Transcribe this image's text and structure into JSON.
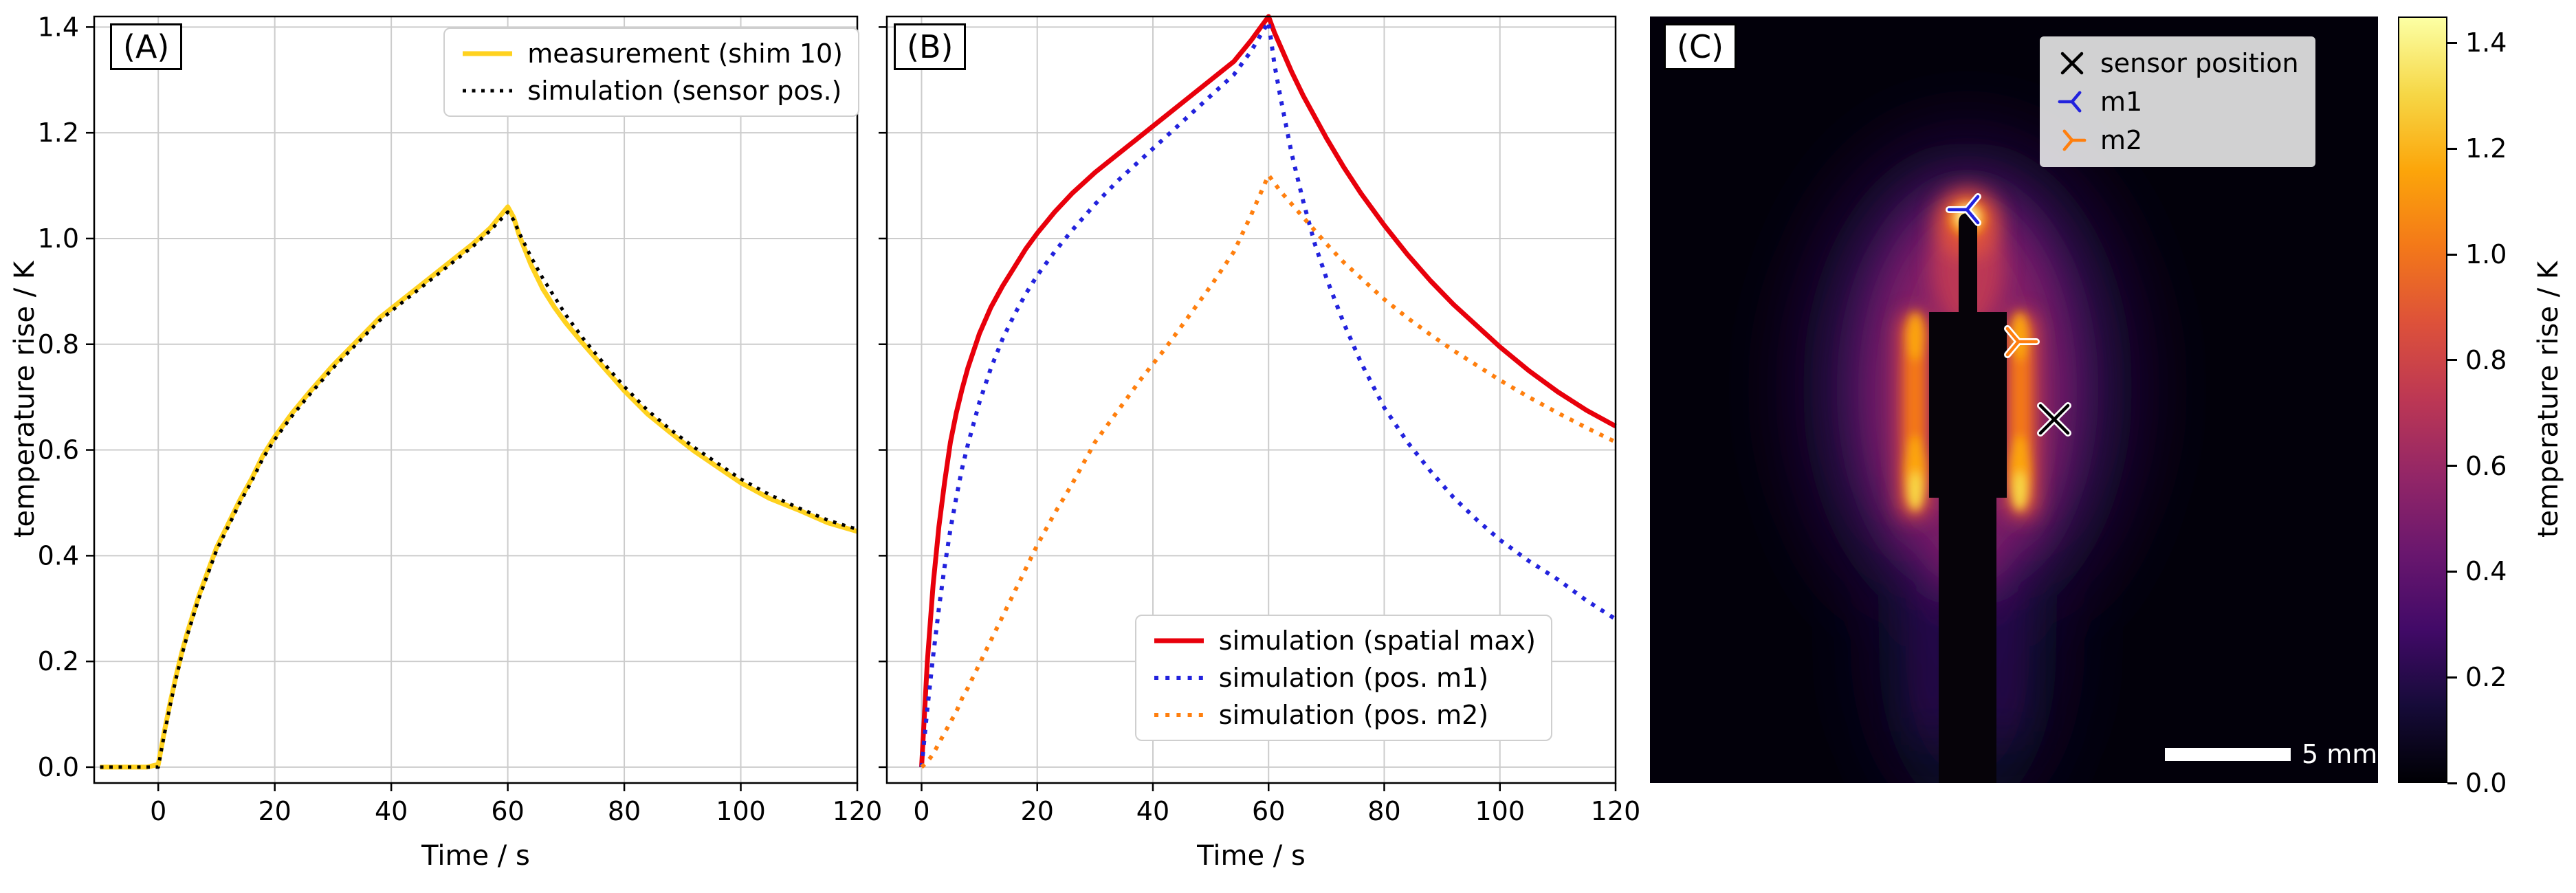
{
  "figure": {
    "panels": [
      {
        "tag": "(A)"
      },
      {
        "tag": "(B)"
      },
      {
        "tag": "(C)"
      }
    ]
  },
  "chart_data": [
    {
      "id": "panelA",
      "type": "line",
      "xlabel": "Time / s",
      "ylabel": "temperature rise / K",
      "xlim": [
        -11,
        120
      ],
      "ylim": [
        -0.03,
        1.42
      ],
      "xticks": [
        0,
        20,
        40,
        60,
        80,
        100,
        120
      ],
      "yticks": [
        0.0,
        0.2,
        0.4,
        0.6,
        0.8,
        1.0,
        1.2,
        1.4
      ],
      "grid": true,
      "legend_position": "upper right",
      "series": [
        {
          "name": "measurement (shim 10)",
          "color": "#ffd21f",
          "style": "solid",
          "width": 7,
          "x": [
            -10,
            -5,
            -2,
            0,
            1,
            2,
            3,
            4,
            5,
            6,
            7,
            8,
            10,
            12,
            14,
            16,
            18,
            20,
            23,
            26,
            30,
            34,
            38,
            42,
            46,
            50,
            54,
            57,
            60,
            61,
            62,
            64,
            66,
            68,
            70,
            73,
            76,
            80,
            84,
            88,
            92,
            96,
            100,
            105,
            110,
            115,
            120
          ],
          "y": [
            0,
            0,
            0,
            0.005,
            0.065,
            0.12,
            0.17,
            0.215,
            0.255,
            0.29,
            0.325,
            0.355,
            0.415,
            0.46,
            0.505,
            0.545,
            0.59,
            0.625,
            0.67,
            0.71,
            0.76,
            0.805,
            0.85,
            0.885,
            0.92,
            0.955,
            0.99,
            1.02,
            1.06,
            1.04,
            1.005,
            0.95,
            0.905,
            0.87,
            0.84,
            0.8,
            0.762,
            0.712,
            0.668,
            0.632,
            0.598,
            0.568,
            0.538,
            0.508,
            0.486,
            0.462,
            0.446
          ]
        },
        {
          "name": "simulation (sensor pos.)",
          "color": "#000000",
          "style": "dotted",
          "width": 5,
          "x": [
            -10,
            -5,
            -2,
            0,
            1,
            2,
            3,
            4,
            5,
            6,
            7,
            8,
            10,
            12,
            14,
            16,
            18,
            20,
            23,
            26,
            30,
            34,
            38,
            42,
            46,
            50,
            54,
            57,
            60,
            61,
            62,
            64,
            66,
            68,
            70,
            73,
            76,
            80,
            84,
            88,
            92,
            96,
            100,
            105,
            110,
            115,
            120
          ],
          "y": [
            0,
            0,
            0,
            0,
            0.06,
            0.115,
            0.165,
            0.21,
            0.25,
            0.285,
            0.32,
            0.35,
            0.41,
            0.455,
            0.5,
            0.54,
            0.585,
            0.62,
            0.665,
            0.705,
            0.755,
            0.8,
            0.845,
            0.88,
            0.915,
            0.95,
            0.985,
            1.015,
            1.05,
            1.035,
            1.01,
            0.965,
            0.925,
            0.89,
            0.855,
            0.81,
            0.77,
            0.72,
            0.675,
            0.638,
            0.605,
            0.575,
            0.545,
            0.515,
            0.49,
            0.467,
            0.45
          ]
        }
      ]
    },
    {
      "id": "panelB",
      "type": "line",
      "xlabel": "Time / s",
      "ylabel": "",
      "xlim": [
        -6,
        120
      ],
      "ylim": [
        -0.03,
        1.42
      ],
      "xticks": [
        0,
        20,
        40,
        60,
        80,
        100,
        120
      ],
      "yticks": [
        0.0,
        0.2,
        0.4,
        0.6,
        0.8,
        1.0,
        1.2,
        1.4
      ],
      "grid": true,
      "legend_position": "lower right",
      "series": [
        {
          "name": "simulation (spatial max)",
          "color": "#e8000b",
          "style": "solid",
          "width": 7,
          "x": [
            0,
            1,
            2,
            3,
            4,
            5,
            6,
            7,
            8,
            10,
            12,
            14,
            16,
            18,
            20,
            23,
            26,
            30,
            34,
            38,
            42,
            46,
            50,
            54,
            57,
            60,
            61,
            62,
            64,
            66,
            68,
            70,
            73,
            76,
            80,
            84,
            88,
            92,
            96,
            100,
            105,
            110,
            115,
            120
          ],
          "y": [
            0,
            0.2,
            0.345,
            0.455,
            0.54,
            0.615,
            0.67,
            0.715,
            0.755,
            0.82,
            0.87,
            0.91,
            0.945,
            0.98,
            1.01,
            1.05,
            1.085,
            1.125,
            1.16,
            1.195,
            1.23,
            1.265,
            1.3,
            1.335,
            1.375,
            1.42,
            1.39,
            1.365,
            1.315,
            1.27,
            1.23,
            1.19,
            1.135,
            1.085,
            1.025,
            0.97,
            0.92,
            0.875,
            0.835,
            0.795,
            0.75,
            0.71,
            0.675,
            0.645
          ]
        },
        {
          "name": "simulation (pos. m1)",
          "color": "#2222dd",
          "style": "dotted",
          "width": 6,
          "x": [
            0,
            1,
            2,
            3,
            4,
            5,
            6,
            7,
            8,
            10,
            12,
            14,
            16,
            18,
            20,
            23,
            26,
            30,
            34,
            38,
            42,
            46,
            50,
            54,
            57,
            60,
            61,
            62,
            64,
            66,
            68,
            70,
            73,
            76,
            80,
            84,
            88,
            92,
            96,
            100,
            105,
            110,
            115,
            120
          ],
          "y": [
            0,
            0.11,
            0.21,
            0.3,
            0.38,
            0.45,
            0.51,
            0.565,
            0.61,
            0.69,
            0.755,
            0.81,
            0.855,
            0.895,
            0.93,
            0.975,
            1.015,
            1.065,
            1.11,
            1.15,
            1.19,
            1.23,
            1.27,
            1.31,
            1.355,
            1.41,
            1.33,
            1.27,
            1.16,
            1.07,
            0.99,
            0.925,
            0.84,
            0.765,
            0.68,
            0.615,
            0.56,
            0.51,
            0.468,
            0.43,
            0.39,
            0.355,
            0.315,
            0.28
          ]
        },
        {
          "name": "simulation (pos. m2)",
          "color": "#ff7f0e",
          "style": "dotted",
          "width": 6,
          "x": [
            0,
            1,
            2,
            3,
            4,
            5,
            6,
            7,
            8,
            10,
            12,
            14,
            16,
            18,
            20,
            23,
            26,
            30,
            34,
            38,
            42,
            46,
            50,
            54,
            57,
            60,
            61,
            62,
            64,
            66,
            68,
            70,
            73,
            76,
            80,
            84,
            88,
            92,
            96,
            100,
            105,
            110,
            115,
            120
          ],
          "y": [
            0,
            0.01,
            0.025,
            0.045,
            0.065,
            0.085,
            0.105,
            0.13,
            0.15,
            0.195,
            0.24,
            0.285,
            0.33,
            0.375,
            0.42,
            0.48,
            0.535,
            0.615,
            0.675,
            0.735,
            0.79,
            0.85,
            0.91,
            0.975,
            1.045,
            1.12,
            1.105,
            1.09,
            1.065,
            1.04,
            1.015,
            0.99,
            0.955,
            0.925,
            0.885,
            0.85,
            0.818,
            0.788,
            0.76,
            0.732,
            0.7,
            0.67,
            0.642,
            0.615
          ]
        }
      ]
    },
    {
      "id": "panelC",
      "type": "heatmap",
      "legend_items": [
        {
          "label": "sensor position",
          "marker": "x",
          "color": "#000000"
        },
        {
          "label": "m1",
          "marker": "tri-left",
          "color": "#2222dd"
        },
        {
          "label": "m2",
          "marker": "tri-right",
          "color": "#ff7f0e"
        }
      ],
      "markers": [
        {
          "name": "m1",
          "marker": "tri-left",
          "color": "#2222dd",
          "x": 461,
          "y": 281
        },
        {
          "name": "m2",
          "marker": "tri-right",
          "color": "#ff7f0e",
          "x": 536,
          "y": 473
        },
        {
          "name": "sensor position",
          "marker": "x",
          "color": "#000000",
          "x": 588,
          "y": 586
        }
      ],
      "scale_bar_label": "5 mm",
      "colorbar": {
        "label": "temperature rise / K",
        "range": [
          0,
          1.45
        ],
        "ticks": [
          0.0,
          0.2,
          0.4,
          0.6,
          0.8,
          1.0,
          1.2,
          1.4
        ],
        "colormap": "inferno",
        "colormap_stops": [
          "#000004",
          "#160b39",
          "#420a68",
          "#6a176e",
          "#932667",
          "#bc3754",
          "#dd513a",
          "#f37819",
          "#fca50a",
          "#f6d746",
          "#fcffa4"
        ]
      }
    }
  ]
}
